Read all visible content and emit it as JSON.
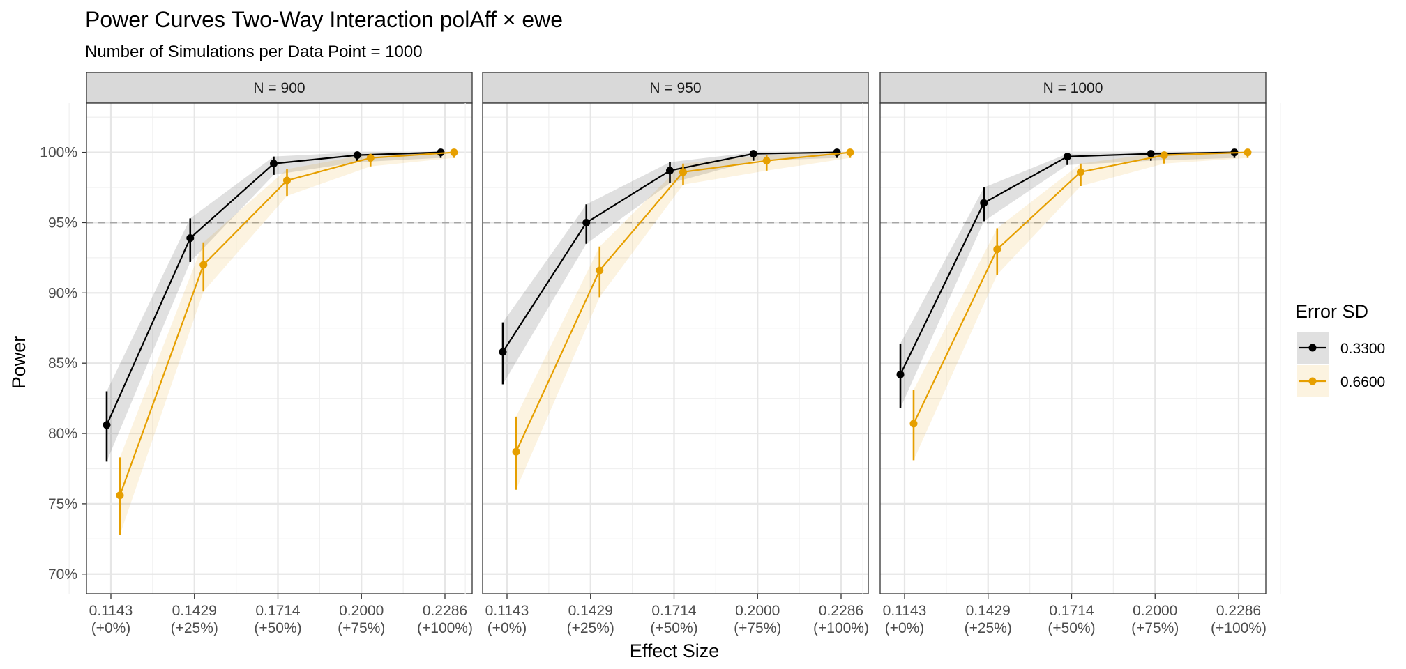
{
  "chart_data": {
    "type": "line",
    "title": "Power Curves Two-Way Interaction polAff × ewe",
    "subtitle": "Number of Simulations per Data Point = 1000",
    "xlabel": "Effect Size",
    "ylabel": "Power",
    "x_ticks": [
      {
        "value": "0.1143",
        "change": "(+0%)"
      },
      {
        "value": "0.1429",
        "change": "(+25%)"
      },
      {
        "value": "0.1714",
        "change": "(+50%)"
      },
      {
        "value": "0.2000",
        "change": "(+75%)"
      },
      {
        "value": "0.2286",
        "change": "(+100%)"
      }
    ],
    "y_ticks": [
      "70%",
      "75%",
      "80%",
      "85%",
      "90%",
      "95%",
      "100%"
    ],
    "ylim": [
      68.6,
      103.5
    ],
    "reference_line": 95,
    "legend": {
      "title": "Error SD",
      "position": "right"
    },
    "series_colors": [
      "#000000",
      "#E69F00"
    ],
    "panels": [
      {
        "label": "N = 900",
        "series": [
          {
            "name": "0.3300",
            "values": [
              80.6,
              93.9,
              99.2,
              99.8,
              100.0
            ],
            "lower": [
              78.0,
              92.2,
              98.4,
              99.3,
              99.6
            ],
            "upper": [
              83.0,
              95.3,
              99.7,
              100.0,
              100.0
            ]
          },
          {
            "name": "0.6600",
            "values": [
              75.6,
              92.0,
              98.0,
              99.6,
              100.0
            ],
            "lower": [
              72.8,
              90.1,
              96.9,
              99.0,
              99.6
            ],
            "upper": [
              78.3,
              93.6,
              98.8,
              99.9,
              100.0
            ]
          }
        ]
      },
      {
        "label": "N = 950",
        "series": [
          {
            "name": "0.3300",
            "values": [
              85.8,
              95.0,
              98.7,
              99.9,
              100.0
            ],
            "lower": [
              83.5,
              93.5,
              97.8,
              99.4,
              99.6
            ],
            "upper": [
              87.9,
              96.3,
              99.3,
              100.0,
              100.0
            ]
          },
          {
            "name": "0.6600",
            "values": [
              78.7,
              91.6,
              98.6,
              99.4,
              100.0
            ],
            "lower": [
              76.0,
              89.7,
              97.7,
              98.7,
              99.6
            ],
            "upper": [
              81.2,
              93.3,
              99.2,
              99.8,
              100.0
            ]
          }
        ]
      },
      {
        "label": "N = 1000",
        "series": [
          {
            "name": "0.3300",
            "values": [
              84.2,
              96.4,
              99.7,
              99.9,
              100.0
            ],
            "lower": [
              81.8,
              95.1,
              99.1,
              99.4,
              99.6
            ],
            "upper": [
              86.4,
              97.5,
              99.9,
              100.0,
              100.0
            ]
          },
          {
            "name": "0.6600",
            "values": [
              80.7,
              93.1,
              98.6,
              99.8,
              100.0
            ],
            "lower": [
              78.1,
              91.3,
              97.6,
              99.2,
              99.6
            ],
            "upper": [
              83.1,
              94.6,
              99.2,
              100.0,
              100.0
            ]
          }
        ]
      }
    ]
  }
}
